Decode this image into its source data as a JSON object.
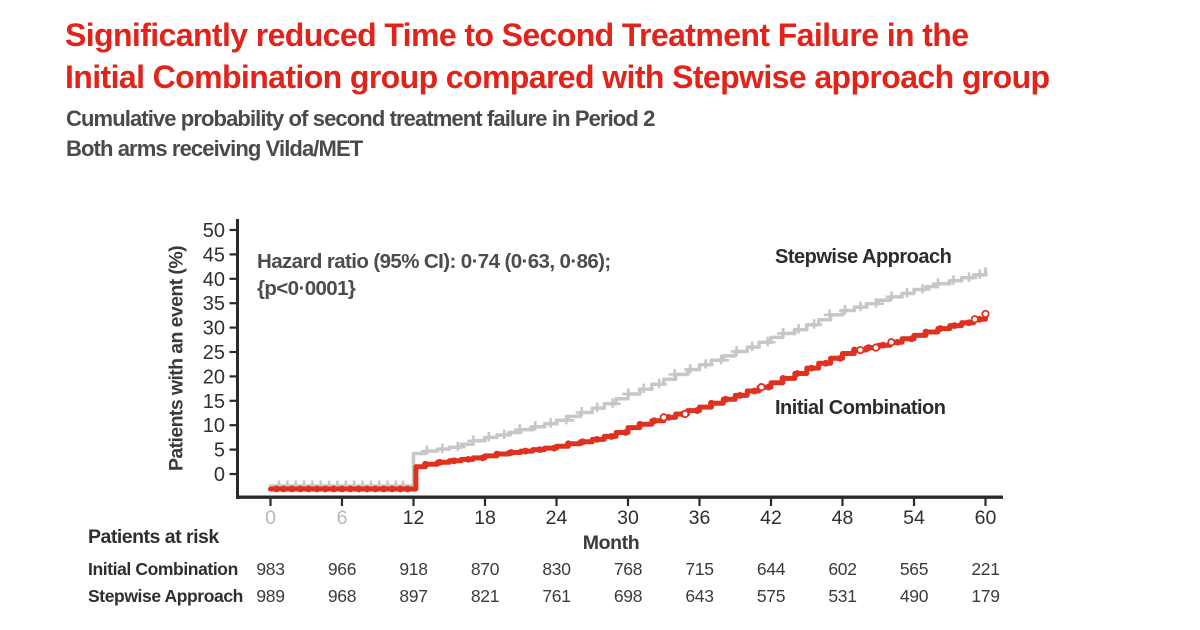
{
  "title": {
    "line1": "Significantly reduced Time to Second Treatment Failure in the",
    "line2": "Initial Combination group compared with Stepwise approach group",
    "color": "#E2231A"
  },
  "subtitle": {
    "line1": "Cumulative probability of second treatment failure in Period 2",
    "line2": "Both arms receiving Vilda/MET"
  },
  "chart_data": {
    "type": "line",
    "subtype": "kaplan-meier-step-curves",
    "xlabel": "Month",
    "ylabel": "Patients with an event (%)",
    "xlim": [
      0,
      60
    ],
    "ylim": [
      0,
      50
    ],
    "x_ticks": [
      0,
      6,
      12,
      18,
      24,
      30,
      36,
      42,
      48,
      54,
      60
    ],
    "y_ticks": [
      0,
      5,
      10,
      15,
      20,
      25,
      30,
      35,
      40,
      45,
      50
    ],
    "muted_x_ticks": [
      0,
      6
    ],
    "grid": false,
    "annotation": {
      "line1": "Hazard ratio (95% CI): 0·74 (0·63, 0·86);",
      "line2": "{p<0·0001}"
    },
    "colors": {
      "axis": "#2b2a29",
      "tick_label": "#2f2f2e",
      "muted_tick_label": "#b7b7b7"
    },
    "series": [
      {
        "name": "Stepwise Approach",
        "color": "#C7C7C7",
        "points": [
          [
            0,
            0
          ],
          [
            11.5,
            0
          ],
          [
            12,
            4.2
          ],
          [
            13,
            4.7
          ],
          [
            14,
            5.1
          ],
          [
            15,
            5.5
          ],
          [
            16,
            6.1
          ],
          [
            17,
            6.8
          ],
          [
            18,
            7.5
          ],
          [
            19,
            8
          ],
          [
            20,
            8.5
          ],
          [
            21,
            9.1
          ],
          [
            22,
            9.7
          ],
          [
            23,
            10.3
          ],
          [
            24,
            11
          ],
          [
            25,
            11.8
          ],
          [
            26,
            12.6
          ],
          [
            27,
            13.5
          ],
          [
            28,
            14.4
          ],
          [
            29,
            15.4
          ],
          [
            30,
            16.4
          ],
          [
            31,
            17.4
          ],
          [
            32,
            18.4
          ],
          [
            33,
            19.4
          ],
          [
            34,
            20.4
          ],
          [
            35,
            21.4
          ],
          [
            36,
            22.4
          ],
          [
            37,
            23.3
          ],
          [
            38,
            24.2
          ],
          [
            39,
            25.1
          ],
          [
            40,
            26
          ],
          [
            41,
            27
          ],
          [
            42,
            28
          ],
          [
            43,
            28.8
          ],
          [
            44,
            29.6
          ],
          [
            45,
            30.6
          ],
          [
            46,
            31.6
          ],
          [
            47,
            32.6
          ],
          [
            48,
            33.5
          ],
          [
            49,
            34.2
          ],
          [
            50,
            34.9
          ],
          [
            51,
            35.6
          ],
          [
            52,
            36.3
          ],
          [
            53,
            37
          ],
          [
            54,
            37.8
          ],
          [
            55,
            38.4
          ],
          [
            56,
            39
          ],
          [
            57,
            39.6
          ],
          [
            58,
            40.2
          ],
          [
            59,
            40.8
          ],
          [
            60,
            42
          ]
        ],
        "censor_months": [
          0.8,
          1.5,
          2.2,
          2.9,
          3.6,
          4.3,
          5,
          5.7,
          6.4,
          7.1,
          7.8,
          8.5,
          9.2,
          9.9,
          10.6,
          11.2,
          13.2,
          14.5,
          15.8,
          17.1,
          18.4,
          19.7,
          21,
          22.3,
          23.6,
          24.9,
          26.2,
          27.5,
          28.8,
          30.1,
          31.4,
          32.7,
          34,
          35.3,
          36.6,
          37.9,
          39.2,
          40.5,
          41.8,
          43.1,
          44.4,
          45.7,
          47,
          48.3,
          49.6,
          50.9,
          52.2,
          53.5,
          54.8,
          56.1,
          57.4,
          58.7,
          59.6
        ]
      },
      {
        "name": "Initial Combination",
        "color": "#E0301F",
        "points": [
          [
            0,
            0
          ],
          [
            12,
            0
          ],
          [
            12.2,
            1.5
          ],
          [
            13,
            2
          ],
          [
            14,
            2.4
          ],
          [
            15,
            2.7
          ],
          [
            16,
            3
          ],
          [
            17,
            3.3
          ],
          [
            18,
            3.7
          ],
          [
            19,
            4.1
          ],
          [
            20,
            4.4
          ],
          [
            21,
            4.7
          ],
          [
            22,
            5
          ],
          [
            23,
            5.3
          ],
          [
            24,
            5.7
          ],
          [
            25,
            6.2
          ],
          [
            26,
            6.6
          ],
          [
            27,
            7.1
          ],
          [
            28,
            7.7
          ],
          [
            29,
            8.5
          ],
          [
            30,
            9.5
          ],
          [
            31,
            10.2
          ],
          [
            32,
            10.9
          ],
          [
            33,
            11.6
          ],
          [
            34,
            12.3
          ],
          [
            35,
            13
          ],
          [
            36,
            13.7
          ],
          [
            37,
            14.5
          ],
          [
            38,
            15.3
          ],
          [
            39,
            16.1
          ],
          [
            40,
            17
          ],
          [
            41,
            17.8
          ],
          [
            42,
            18.7
          ],
          [
            43,
            19.6
          ],
          [
            44,
            20.6
          ],
          [
            45,
            21.7
          ],
          [
            46,
            22.7
          ],
          [
            47,
            23.7
          ],
          [
            48,
            24.7
          ],
          [
            49,
            25.4
          ],
          [
            50,
            25.9
          ],
          [
            51,
            26.4
          ],
          [
            52,
            27
          ],
          [
            53,
            27.7
          ],
          [
            54,
            28.4
          ],
          [
            55,
            29.1
          ],
          [
            56,
            29.8
          ],
          [
            57,
            30.4
          ],
          [
            58,
            31
          ],
          [
            59,
            31.7
          ],
          [
            60,
            32.8
          ]
        ],
        "censor_months": [
          0.5,
          1.1,
          1.8,
          2.5,
          3.2,
          3.9,
          4.6,
          5.3,
          6,
          6.7,
          7.4,
          8.1,
          8.8,
          9.5,
          10.2,
          10.9,
          11.5,
          13,
          14.2,
          15.4,
          16.6,
          17.8,
          19,
          20.2,
          21.4,
          22.6,
          23.8,
          25,
          26.2,
          27.4,
          28.6,
          29.8,
          31,
          32.2,
          33.4,
          34.6,
          35.8,
          37,
          38.2,
          39.4,
          40.6,
          41.8,
          43,
          44.2,
          45.4,
          46.6,
          47.8,
          49,
          50.2,
          51.4,
          52.6,
          53.8,
          55,
          56.2,
          57.4,
          58.6,
          59.5,
          60
        ],
        "open_markers": [
          33,
          34.8,
          41.2,
          49.5,
          50.8,
          52.1,
          59.1,
          60
        ]
      }
    ],
    "risk_table": {
      "heading": "Patients at risk",
      "months": [
        0,
        6,
        12,
        18,
        24,
        30,
        36,
        42,
        48,
        54,
        60
      ],
      "rows": [
        {
          "label": "Initial Combination",
          "values": [
            "983",
            "966",
            "918",
            "870",
            "830",
            "768",
            "715",
            "644",
            "602",
            "565",
            "221"
          ]
        },
        {
          "label": "Stepwise Approach",
          "values": [
            "989",
            "968",
            "897",
            "821",
            "761",
            "698",
            "643",
            "575",
            "531",
            "490",
            "179"
          ]
        }
      ]
    }
  }
}
